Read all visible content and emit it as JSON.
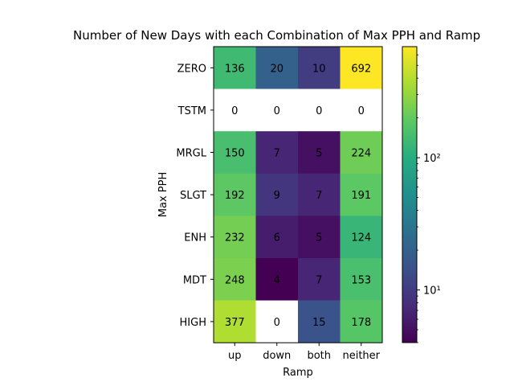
{
  "chart_data": {
    "type": "heatmap",
    "title": "Number of New Days with each Combination of Max PPH and Ramp",
    "xlabel": "Ramp",
    "ylabel": "Max PPH",
    "x_categories": [
      "up",
      "down",
      "both",
      "neither"
    ],
    "y_categories": [
      "ZERO",
      "TSTM",
      "MRGL",
      "SLGT",
      "ENH",
      "MDT",
      "HIGH"
    ],
    "values": [
      [
        136,
        20,
        10,
        692
      ],
      [
        0,
        0,
        0,
        0
      ],
      [
        150,
        7,
        5,
        224
      ],
      [
        192,
        9,
        7,
        191
      ],
      [
        232,
        6,
        5,
        124
      ],
      [
        248,
        4,
        7,
        153
      ],
      [
        377,
        0,
        15,
        178
      ]
    ],
    "colormap": "viridis",
    "color_scale": "log",
    "color_range": [
      4,
      692
    ],
    "zero_cells_color": "#ffffff",
    "colorbar_ticks": [
      {
        "value": 10,
        "label": "10¹"
      },
      {
        "value": 100,
        "label": "10²"
      }
    ],
    "grid": false
  }
}
